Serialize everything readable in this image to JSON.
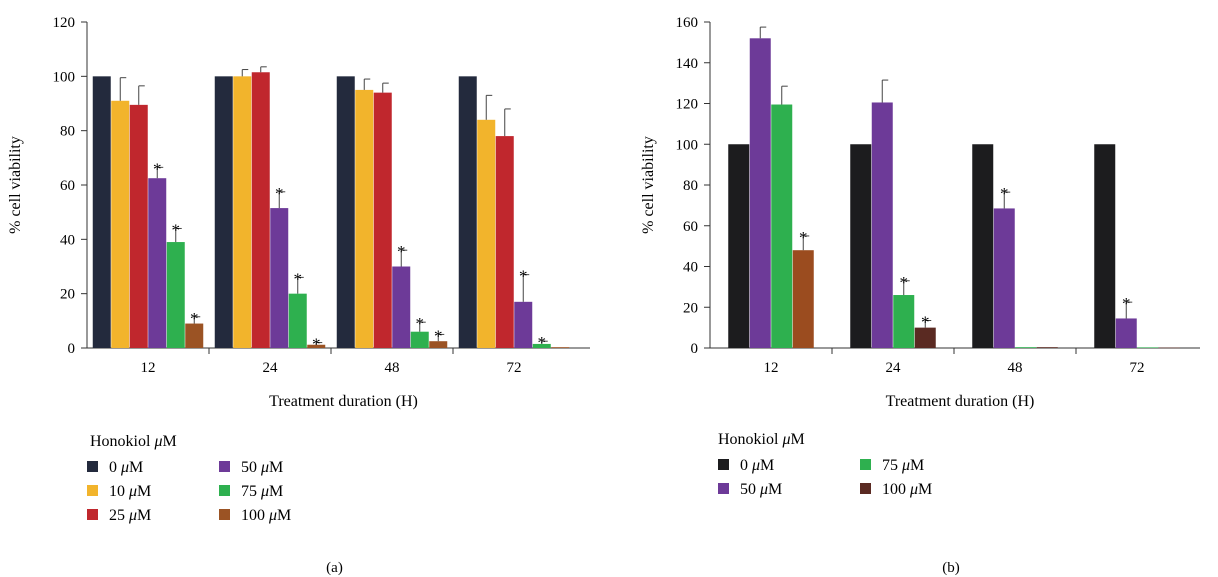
{
  "legend_title": "Honokiol μM",
  "chart_data": [
    {
      "type": "bar",
      "panel_label": "(a)",
      "xlabel": "Treatment duration (H)",
      "ylabel": "% cell viability",
      "ylim": [
        0,
        120
      ],
      "yticks": [
        0,
        20,
        40,
        60,
        80,
        100,
        120
      ],
      "categories": [
        "12",
        "24",
        "48",
        "72"
      ],
      "legend_title": "Honokiol μM",
      "legend_columns": 2,
      "series": [
        {
          "name": "0 μM",
          "color": "#232a3d",
          "values": [
            100,
            100,
            100,
            100
          ],
          "errors": [
            0,
            0,
            0,
            0
          ],
          "significant": [
            false,
            false,
            false,
            false
          ]
        },
        {
          "name": "10 μM",
          "color": "#f2b42c",
          "values": [
            91,
            100,
            95,
            84
          ],
          "errors": [
            8.5,
            2.5,
            4,
            9
          ],
          "significant": [
            false,
            false,
            false,
            false
          ]
        },
        {
          "name": "25 μM",
          "color": "#c0272d",
          "values": [
            89.5,
            101.5,
            94,
            78
          ],
          "errors": [
            7,
            2,
            3.5,
            10
          ],
          "significant": [
            false,
            false,
            false,
            false
          ]
        },
        {
          "name": "50 μM",
          "color": "#6d3a98",
          "values": [
            62.5,
            51.5,
            30,
            17
          ],
          "errors": [
            4,
            6,
            6,
            10
          ],
          "significant": [
            true,
            true,
            true,
            true
          ]
        },
        {
          "name": "75 μM",
          "color": "#2eb04f",
          "values": [
            39,
            20,
            6,
            1.5
          ],
          "errors": [
            5,
            6,
            3.5,
            1
          ],
          "significant": [
            true,
            true,
            true,
            true
          ]
        },
        {
          "name": "100 μM",
          "color": "#9b5324",
          "values": [
            9,
            1.2,
            2.5,
            0.3
          ],
          "errors": [
            2.5,
            0.8,
            2.5,
            0
          ],
          "significant": [
            true,
            true,
            true,
            false
          ]
        }
      ]
    },
    {
      "type": "bar",
      "panel_label": "(b)",
      "xlabel": "Treatment duration (H)",
      "ylabel": "% cell viability",
      "ylim": [
        0,
        160
      ],
      "yticks": [
        0,
        20,
        40,
        60,
        80,
        100,
        120,
        140,
        160
      ],
      "categories": [
        "12",
        "24",
        "48",
        "72"
      ],
      "legend_title": "Honokiol μM",
      "legend_columns": 2,
      "series": [
        {
          "name": "0 μM",
          "color": "#1c1c1e",
          "values": [
            100,
            100,
            100,
            100
          ],
          "errors": [
            0,
            0,
            0,
            0
          ],
          "significant": [
            false,
            false,
            false,
            false
          ]
        },
        {
          "name": "50 μM",
          "color": "#6d3a98",
          "values": [
            152,
            120.5,
            68.5,
            14.5
          ],
          "errors": [
            5.5,
            11,
            8,
            8
          ],
          "significant": [
            false,
            false,
            true,
            true
          ]
        },
        {
          "name": "75 μM",
          "color": "#2eb04f",
          "values": [
            119.5,
            26,
            0.4,
            0.3
          ],
          "errors": [
            9,
            7,
            0,
            0
          ],
          "significant": [
            false,
            true,
            false,
            false
          ]
        },
        {
          "name": "100 μM",
          "color": "#9b4c1f",
          "values": [
            48,
            10,
            0.4,
            0.2
          ],
          "errors": [
            7,
            3.5,
            0,
            0
          ],
          "significant": [
            true,
            true,
            false,
            false
          ]
        }
      ],
      "bar_colors_override": {
        "100 μM": [
          "#9b4c1f",
          "#5a2a22",
          "#5a2a22",
          "#5a2a22"
        ]
      },
      "legend_swatch_override": {
        "100 μM": "#5a2a22"
      }
    }
  ]
}
